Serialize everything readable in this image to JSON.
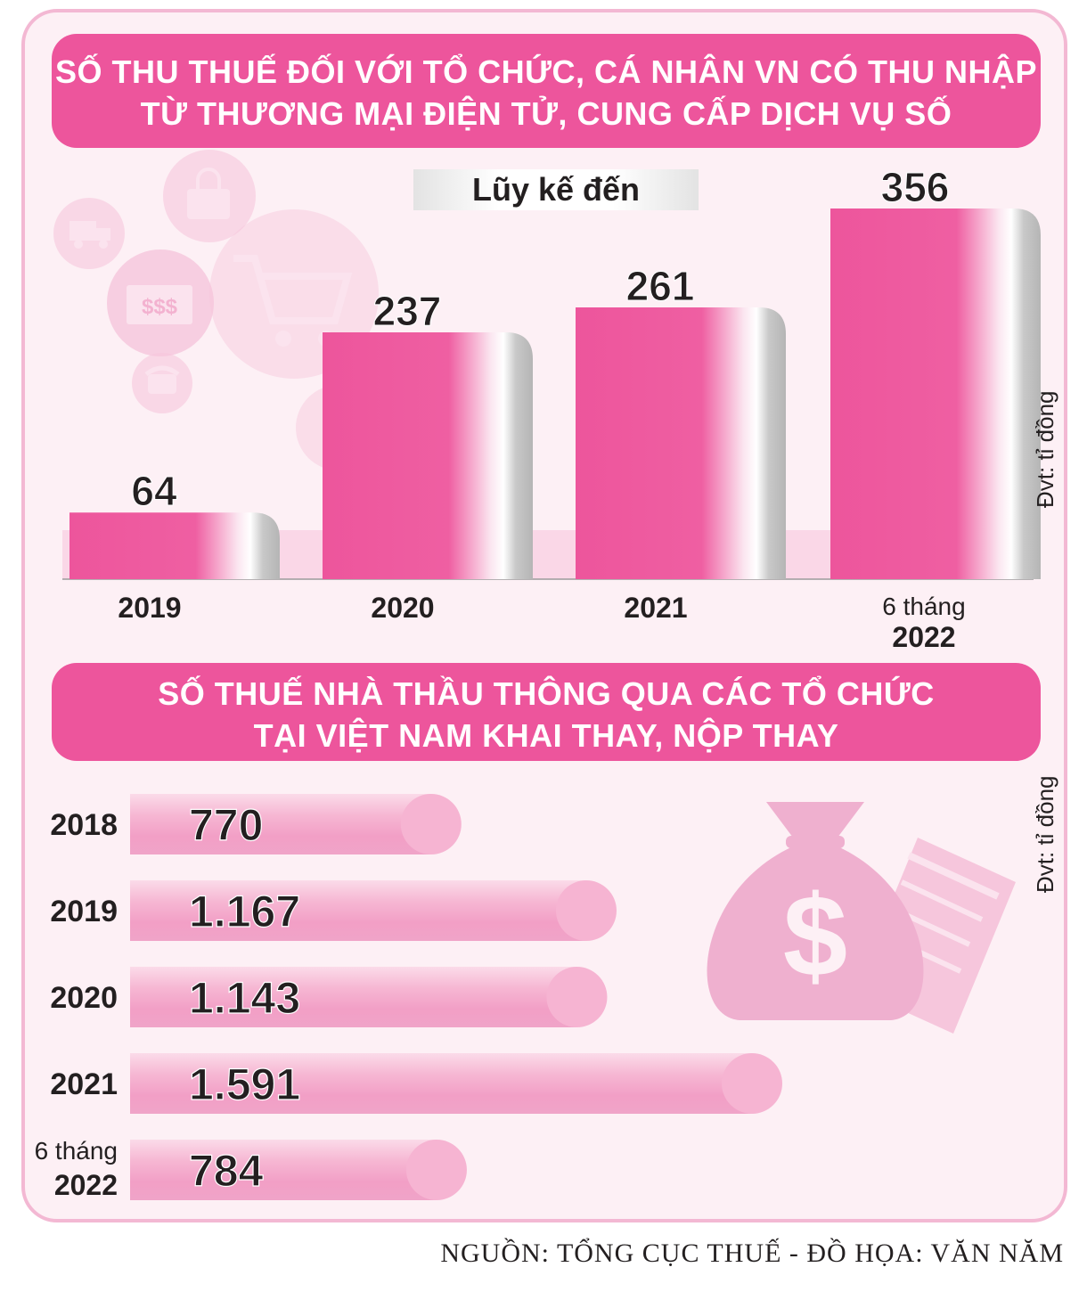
{
  "title_top": {
    "line1": "SỐ THU THUẾ ĐỐI VỚI TỔ CHỨC, CÁ NHÂN VN CÓ THU NHẬP",
    "line2": "TỪ THƯƠNG MẠI ĐIỆN TỬ, CUNG CẤP DỊCH VỤ SỐ"
  },
  "subtitle_top": "Lũy kế đến",
  "unit_label": "Đvt: tỉ đồng",
  "title_bottom": {
    "line1": "SỐ THUẾ NHÀ THẦU THÔNG QUA CÁC TỔ CHỨC",
    "line2": "TẠI VIỆT NAM KHAI THAY, NỘP THAY"
  },
  "source": "NGUỒN: TỔNG CỤC THUẾ - ĐỒ HỌA: VĂN NĂM",
  "icons": [
    "truck-icon",
    "shopping-bag-icon",
    "money-icon",
    "phone-icon",
    "cart-icon",
    "money-bag-icon",
    "receipt-icon"
  ],
  "colors": {
    "pink": "#ed559c",
    "light_pink": "#f3a8cc",
    "bg": "#fdf0f5",
    "border": "#f3b8d3",
    "text": "#231f20"
  },
  "chart_data": [
    {
      "type": "bar",
      "orientation": "vertical",
      "categories": [
        {
          "line1": "2019",
          "line2": ""
        },
        {
          "line1": "2020",
          "line2": ""
        },
        {
          "line1": "2021",
          "line2": ""
        },
        {
          "line1": "6 tháng",
          "line2": "2022"
        }
      ],
      "values": [
        64,
        237,
        261,
        356
      ],
      "value_labels": [
        "64",
        "237",
        "261",
        "356"
      ],
      "ylabel": "Đvt: tỉ đồng"
    },
    {
      "type": "bar",
      "orientation": "horizontal",
      "categories": [
        {
          "line1": "2018",
          "line2": ""
        },
        {
          "line1": "2019",
          "line2": ""
        },
        {
          "line1": "2020",
          "line2": ""
        },
        {
          "line1": "2021",
          "line2": ""
        },
        {
          "line1": "6 tháng",
          "line2": "2022"
        }
      ],
      "values": [
        770,
        1167,
        1143,
        1591,
        784
      ],
      "value_labels": [
        "770",
        "1.167",
        "1.143",
        "1.591",
        "784"
      ],
      "xlabel": "Đvt: tỉ đồng"
    }
  ]
}
